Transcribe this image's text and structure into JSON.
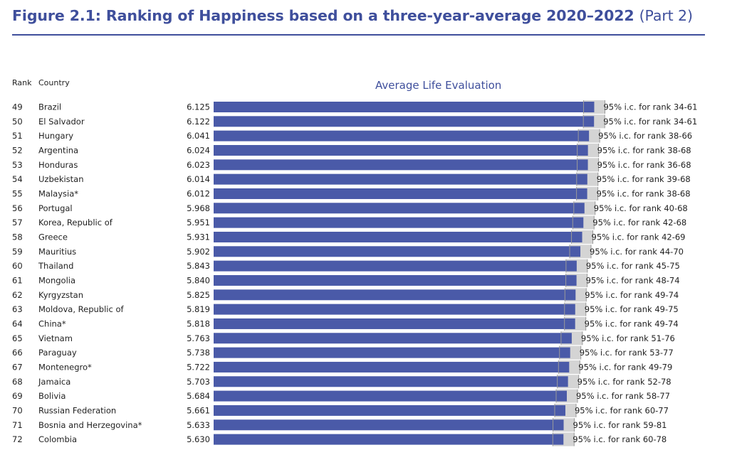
{
  "figure": {
    "title": "Figure 2.1: Ranking of Happiness based on a three-year-average 2020–2022",
    "title_part": "(Part 2)"
  },
  "headers": {
    "rank": "Rank",
    "country": "Country"
  },
  "chart_data": {
    "type": "bar",
    "orientation": "horizontal",
    "title": "Average Life Evaluation",
    "colors": {
      "bar": "#4a5aa8",
      "ci": "#d4d4d4",
      "ci_edge": "#9a9a9a",
      "text": "#222222",
      "title": "#3f4f9c"
    },
    "rows": [
      {
        "rank": "49",
        "country": "Brazil",
        "value": 6.125,
        "ci_label": "95% i.c. for rank 34-61"
      },
      {
        "rank": "50",
        "country": "El Salvador",
        "value": 6.122,
        "ci_label": "95% i.c. for rank 34-61"
      },
      {
        "rank": "51",
        "country": "Hungary",
        "value": 6.041,
        "ci_label": "95% i.c. for rank 38-66"
      },
      {
        "rank": "52",
        "country": "Argentina",
        "value": 6.024,
        "ci_label": "95% i.c. for rank 38-68"
      },
      {
        "rank": "53",
        "country": "Honduras",
        "value": 6.023,
        "ci_label": "95% i.c. for rank 36-68"
      },
      {
        "rank": "54",
        "country": "Uzbekistan",
        "value": 6.014,
        "ci_label": "95% i.c. for rank 39-68"
      },
      {
        "rank": "55",
        "country": "Malaysia*",
        "value": 6.012,
        "ci_label": "95% i.c. for rank 38-68"
      },
      {
        "rank": "56",
        "country": "Portugal",
        "value": 5.968,
        "ci_label": "95% i.c. for rank 40-68"
      },
      {
        "rank": "57",
        "country": "Korea, Republic of",
        "value": 5.951,
        "ci_label": "95% i.c. for rank 42-68"
      },
      {
        "rank": "58",
        "country": "Greece",
        "value": 5.931,
        "ci_label": "95% i.c. for rank 42-69"
      },
      {
        "rank": "59",
        "country": "Mauritius",
        "value": 5.902,
        "ci_label": "95% i.c. for rank 44-70"
      },
      {
        "rank": "60",
        "country": "Thailand",
        "value": 5.843,
        "ci_label": "95% i.c. for rank 45-75"
      },
      {
        "rank": "61",
        "country": "Mongolia",
        "value": 5.84,
        "ci_label": "95% i.c. for rank 48-74"
      },
      {
        "rank": "62",
        "country": "Kyrgyzstan",
        "value": 5.825,
        "ci_label": "95% i.c. for rank 49-74"
      },
      {
        "rank": "63",
        "country": "Moldova, Republic of",
        "value": 5.819,
        "ci_label": "95% i.c. for rank 49-75"
      },
      {
        "rank": "64",
        "country": "China*",
        "value": 5.818,
        "ci_label": "95% i.c. for rank 49-74"
      },
      {
        "rank": "65",
        "country": "Vietnam",
        "value": 5.763,
        "ci_label": "95% i.c. for rank 51-76"
      },
      {
        "rank": "66",
        "country": "Paraguay",
        "value": 5.738,
        "ci_label": "95% i.c. for rank 53-77"
      },
      {
        "rank": "67",
        "country": "Montenegro*",
        "value": 5.722,
        "ci_label": "95% i.c. for rank 49-79"
      },
      {
        "rank": "68",
        "country": "Jamaica",
        "value": 5.703,
        "ci_label": "95% i.c. for rank 52-78"
      },
      {
        "rank": "69",
        "country": "Bolivia",
        "value": 5.684,
        "ci_label": "95% i.c. for rank 58-77"
      },
      {
        "rank": "70",
        "country": "Russian Federation",
        "value": 5.661,
        "ci_label": "95% i.c. for rank 60-77"
      },
      {
        "rank": "71",
        "country": "Bosnia and Herzegovina*",
        "value": 5.633,
        "ci_label": "95% i.c. for rank 59-81"
      },
      {
        "rank": "72",
        "country": "Colombia",
        "value": 5.63,
        "ci_label": "95% i.c. for rank 60-78"
      }
    ]
  }
}
